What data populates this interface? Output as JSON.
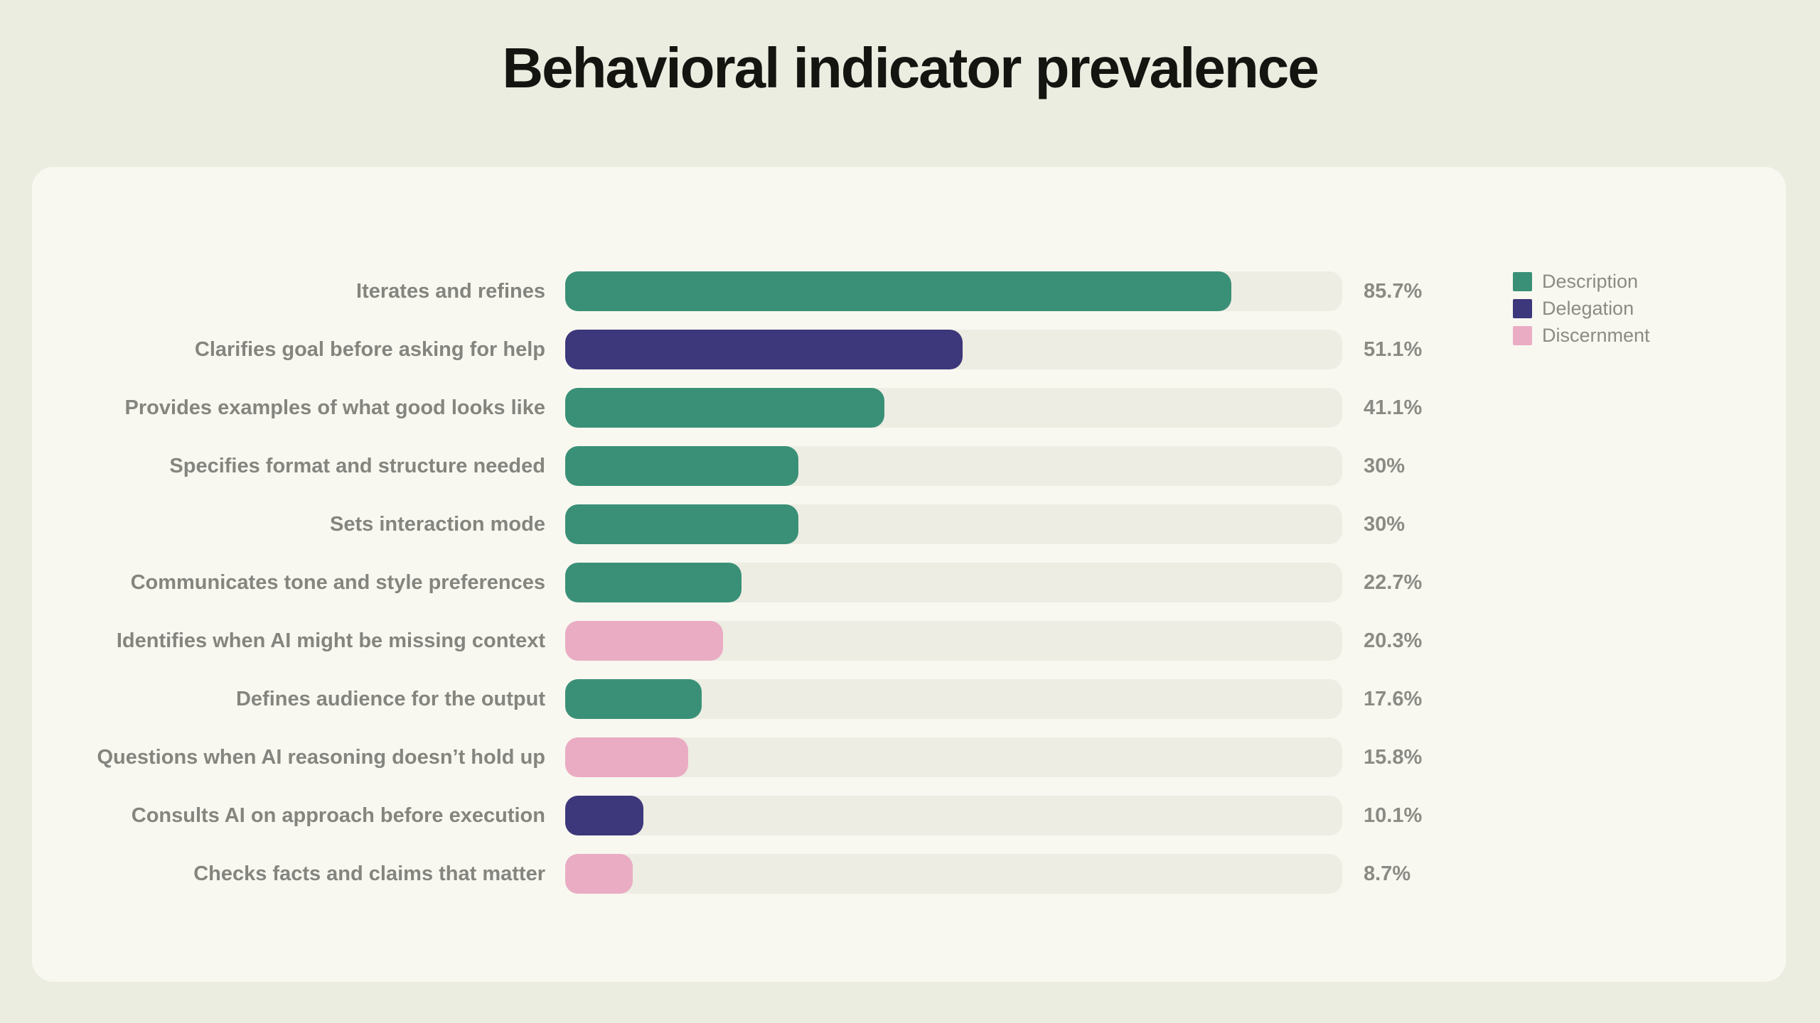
{
  "title": "Behavioral indicator prevalence",
  "colors": {
    "Description": "#3A9077",
    "Delegation": "#3D377B",
    "Discernment": "#EAACC3",
    "page_bg": "#ECEDE1",
    "card_bg": "#F8F8F1",
    "track_bg": "#EDEDE3",
    "label_text": "#85857F",
    "value_text": "#8B8B85",
    "title_text": "#141411"
  },
  "legend": [
    {
      "label": "Description",
      "group": "Description"
    },
    {
      "label": "Delegation",
      "group": "Delegation"
    },
    {
      "label": "Discernment",
      "group": "Discernment"
    }
  ],
  "chart_data": {
    "type": "bar",
    "orientation": "horizontal",
    "title": "Behavioral indicator prevalence",
    "xlabel": "",
    "ylabel": "",
    "xlim": [
      0,
      100
    ],
    "value_unit": "percent",
    "grid": false,
    "legend_position": "top-right",
    "categories": [
      "Iterates and refines",
      "Clarifies goal before asking for help",
      "Provides examples of what good looks like",
      "Specifies format and structure needed",
      "Sets interaction mode",
      "Communicates tone and style preferences",
      "Identifies when AI might be missing context",
      "Defines audience for the output",
      "Questions when AI reasoning doesn’t hold up",
      "Consults AI on approach before execution",
      "Checks facts and claims that matter"
    ],
    "bars": [
      {
        "label": "Iterates and refines",
        "value": 85.7,
        "display": "85.7%",
        "group": "Description"
      },
      {
        "label": "Clarifies goal before asking for help",
        "value": 51.1,
        "display": "51.1%",
        "group": "Delegation"
      },
      {
        "label": "Provides examples of what good looks like",
        "value": 41.1,
        "display": "41.1%",
        "group": "Description"
      },
      {
        "label": "Specifies format and structure needed",
        "value": 30,
        "display": "30%",
        "group": "Description"
      },
      {
        "label": "Sets interaction mode",
        "value": 30,
        "display": "30%",
        "group": "Description"
      },
      {
        "label": "Communicates tone and style preferences",
        "value": 22.7,
        "display": "22.7%",
        "group": "Description"
      },
      {
        "label": "Identifies when AI might be missing context",
        "value": 20.3,
        "display": "20.3%",
        "group": "Discernment"
      },
      {
        "label": "Defines audience for the output",
        "value": 17.6,
        "display": "17.6%",
        "group": "Description"
      },
      {
        "label": "Questions when AI reasoning doesn’t hold up",
        "value": 15.8,
        "display": "15.8%",
        "group": "Discernment"
      },
      {
        "label": "Consults AI on approach before execution",
        "value": 10.1,
        "display": "10.1%",
        "group": "Delegation"
      },
      {
        "label": "Checks facts and claims that matter",
        "value": 8.7,
        "display": "8.7%",
        "group": "Discernment"
      }
    ]
  }
}
